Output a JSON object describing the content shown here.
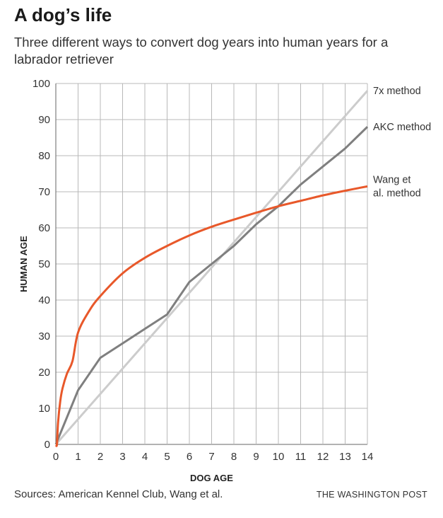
{
  "header": {
    "title": "A dog’s life",
    "subtitle": "Three different ways to convert dog years into human years for a labrador retriever"
  },
  "footer": {
    "source": "Sources: American Kennel Club, Wang et al.",
    "credit": "THE WASHINGTON POST"
  },
  "colors": {
    "grid": "#b8b8b8",
    "axis": "#666666",
    "seven_x": "#cccccc",
    "akc": "#7f7f7f",
    "wang": "#e8582a"
  },
  "chart_data": {
    "type": "line",
    "xlabel": "DOG AGE",
    "ylabel": "HUMAN AGE",
    "xlim": [
      0,
      14
    ],
    "ylim": [
      0,
      100
    ],
    "xticks": [
      "0",
      "1",
      "2",
      "3",
      "4",
      "5",
      "6",
      "7",
      "8",
      "9",
      "10",
      "11",
      "12",
      "13",
      "14"
    ],
    "yticks": [
      "0",
      "10",
      "20",
      "30",
      "40",
      "50",
      "60",
      "70",
      "80",
      "90",
      "100"
    ],
    "grid": true,
    "legend": "direct labels at right end of lines",
    "series": [
      {
        "name": "7x method",
        "color_key": "seven_x",
        "x": [
          0,
          14
        ],
        "y": [
          0,
          98
        ]
      },
      {
        "name": "AKC method",
        "color_key": "akc",
        "x": [
          0,
          1,
          2,
          3,
          4,
          5,
          6,
          7,
          8,
          9,
          10,
          11,
          12,
          13,
          14
        ],
        "y": [
          0,
          15,
          24,
          28,
          32,
          36,
          45,
          50,
          55,
          61,
          66,
          72,
          77,
          82,
          88
        ]
      },
      {
        "name": "Wang et al. method",
        "color_key": "wang",
        "x": [
          0.05,
          0.1,
          0.2,
          0.3,
          0.5,
          0.75,
          1,
          1.5,
          2,
          3,
          4,
          5,
          6,
          7,
          8,
          9,
          10,
          11,
          12,
          13,
          14
        ],
        "y": [
          0,
          6.0,
          12.0,
          15.5,
          19.6,
          23.1,
          31.0,
          37.0,
          41.1,
          47.4,
          51.7,
          55.0,
          57.9,
          60.3,
          62.3,
          64.2,
          66.0,
          67.5,
          69.0,
          70.3,
          71.5
        ]
      }
    ]
  }
}
